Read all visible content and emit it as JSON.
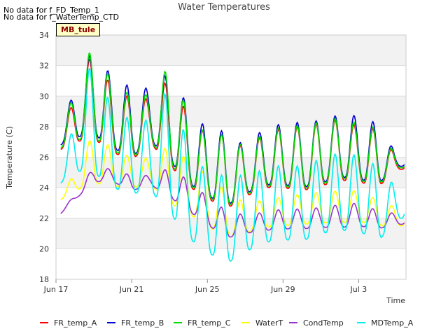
{
  "notes": [
    "No data for f_FD_Temp_1",
    "No data for f_WaterTemp_CTD"
  ],
  "site_tag": "MB_tule",
  "chart_data": {
    "type": "line",
    "title": "Water Temperatures",
    "xlabel": "Time",
    "ylabel": "Temperature (C)",
    "ylim": [
      18,
      34
    ],
    "yticks": [
      18,
      20,
      22,
      24,
      26,
      28,
      30,
      32,
      34
    ],
    "xlim": [
      "2023-06-17",
      "2023-07-05 12:00"
    ],
    "xticks": [
      {
        "date": "2023-06-17",
        "label": "Jun 17"
      },
      {
        "date": "2023-06-21",
        "label": "Jun 21"
      },
      {
        "date": "2023-06-25",
        "label": "Jun 25"
      },
      {
        "date": "2023-06-29",
        "label": "Jun 29"
      },
      {
        "date": "2023-07-03",
        "label": "Jul 3"
      }
    ],
    "grid": true,
    "legend_position": "bottom",
    "x": [
      "2023-06-17 06:00",
      "2023-06-18 00:00",
      "2023-06-19 00:00",
      "2023-06-20 00:00",
      "2023-06-21 00:00",
      "2023-06-22 00:00",
      "2023-06-23 00:00",
      "2023-06-24 00:00",
      "2023-06-25 00:00",
      "2023-06-26 00:00",
      "2023-06-27 00:00",
      "2023-06-28 00:00",
      "2023-06-29 00:00",
      "2023-06-30 00:00",
      "2023-07-01 00:00",
      "2023-07-02 00:00",
      "2023-07-03 00:00",
      "2023-07-04 00:00",
      "2023-07-05 00:00"
    ],
    "series": [
      {
        "name": "FR_temp_A",
        "color": "#ff0000",
        "min": [
          26.5,
          27.0,
          27.2,
          26.3,
          25.8,
          26.9,
          25.5,
          24.1,
          23.3,
          22.6,
          23.4,
          24.0,
          24.0,
          23.8,
          24.1,
          24.5,
          24.4,
          24.0,
          25.2
        ],
        "max": [
          27.5,
          30.0,
          33.2,
          30.3,
          29.9,
          29.8,
          31.2,
          28.7,
          27.4,
          27.5,
          26.5,
          27.5,
          27.9,
          28.0,
          28.2,
          28.5,
          28.0,
          27.8,
          26.0
        ]
      },
      {
        "name": "FR_temp_B",
        "color": "#0000cc",
        "min": [
          26.8,
          27.3,
          27.5,
          26.6,
          26.0,
          27.1,
          25.8,
          24.3,
          23.5,
          22.8,
          23.6,
          24.2,
          24.2,
          24.0,
          24.3,
          24.7,
          24.6,
          24.2,
          25.4
        ],
        "max": [
          27.7,
          30.6,
          33.3,
          31.1,
          30.6,
          30.5,
          31.6,
          29.3,
          27.8,
          27.7,
          26.7,
          27.9,
          28.2,
          28.3,
          28.4,
          28.8,
          28.7,
          28.2,
          26.2
        ]
      },
      {
        "name": "FR_temp_C",
        "color": "#00dd00",
        "min": [
          26.6,
          27.1,
          27.3,
          26.4,
          25.9,
          27.0,
          25.6,
          24.2,
          23.4,
          22.7,
          23.5,
          24.1,
          24.1,
          23.9,
          24.2,
          24.6,
          24.5,
          24.1,
          25.3
        ],
        "max": [
          27.6,
          30.4,
          33.6,
          30.7,
          30.1,
          30.1,
          32.1,
          28.9,
          27.4,
          27.5,
          26.6,
          27.6,
          28.0,
          28.1,
          28.3,
          28.6,
          28.2,
          27.9,
          26.1
        ]
      },
      {
        "name": "WaterT",
        "color": "#ffff00",
        "min": [
          23.2,
          23.8,
          24.3,
          24.1,
          24.0,
          24.2,
          23.0,
          22.3,
          21.5,
          20.7,
          21.0,
          21.4,
          21.5,
          21.6,
          21.7,
          21.7,
          21.8,
          21.5,
          21.5
        ],
        "max": [
          23.5,
          25.0,
          27.7,
          26.5,
          26.0,
          25.9,
          26.8,
          25.8,
          24.8,
          23.8,
          23.0,
          23.2,
          23.4,
          23.6,
          23.7,
          23.8,
          23.8,
          23.2,
          22.7
        ]
      },
      {
        "name": "CondTemp",
        "color": "#9933cc",
        "min": [
          22.3,
          23.2,
          24.4,
          24.4,
          23.8,
          24.2,
          23.4,
          22.5,
          21.6,
          20.7,
          21.0,
          21.2,
          21.3,
          21.3,
          21.4,
          21.4,
          21.5,
          21.3,
          21.6
        ],
        "max": [
          22.5,
          23.5,
          25.4,
          25.2,
          24.8,
          24.8,
          25.3,
          24.5,
          23.4,
          22.5,
          22.2,
          22.4,
          22.6,
          22.6,
          22.7,
          22.9,
          23.0,
          22.5,
          22.3
        ]
      },
      {
        "name": "MDTemp_A",
        "color": "#00eeee",
        "min": [
          24.3,
          25.1,
          25.0,
          24.0,
          23.6,
          23.8,
          22.4,
          20.7,
          19.8,
          19.0,
          19.8,
          20.4,
          20.6,
          20.5,
          21.0,
          21.2,
          21.2,
          20.4,
          22.0
        ],
        "max": [
          24.6,
          28.7,
          32.8,
          28.9,
          28.5,
          28.4,
          30.7,
          26.8,
          24.9,
          24.8,
          24.8,
          25.2,
          25.5,
          25.4,
          25.9,
          26.3,
          26.1,
          25.4,
          24.0
        ]
      }
    ]
  }
}
